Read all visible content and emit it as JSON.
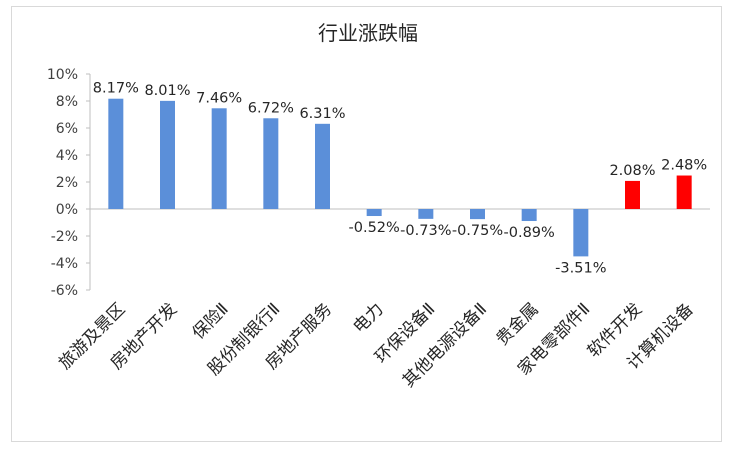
{
  "chart_data": {
    "type": "bar",
    "title": "行业涨跌幅",
    "xlabel": "",
    "ylabel": "",
    "ylim": [
      -6,
      10
    ],
    "ytick_step": 2,
    "ytick_labels": [
      "10%",
      "8%",
      "6%",
      "4%",
      "2%",
      "0%",
      "-2%",
      "-4%",
      "-6%"
    ],
    "grid": false,
    "legend": "none",
    "categories": [
      "旅游及景区",
      "房地产开发",
      "保险Ⅱ",
      "股份制银行Ⅱ",
      "房地产服务",
      "电力",
      "环保设备Ⅱ",
      "其他电源设备Ⅱ",
      "贵金属",
      "家电零部件Ⅱ",
      "软件开发",
      "计算机设备"
    ],
    "values": [
      8.17,
      8.01,
      7.46,
      6.72,
      6.31,
      -0.52,
      -0.73,
      -0.75,
      -0.89,
      -3.51,
      2.08,
      2.48
    ],
    "data_labels": [
      "8.17%",
      "8.01%",
      "7.46%",
      "6.72%",
      "6.31%",
      "-0.52%",
      "-0.73%",
      "-0.75%",
      "-0.89%",
      "-3.51%",
      "2.08%",
      "2.48%"
    ],
    "bar_colors": [
      "#5b8fd9",
      "#5b8fd9",
      "#5b8fd9",
      "#5b8fd9",
      "#5b8fd9",
      "#5b8fd9",
      "#5b8fd9",
      "#5b8fd9",
      "#5b8fd9",
      "#5b8fd9",
      "#ff0000",
      "#ff0000"
    ]
  }
}
